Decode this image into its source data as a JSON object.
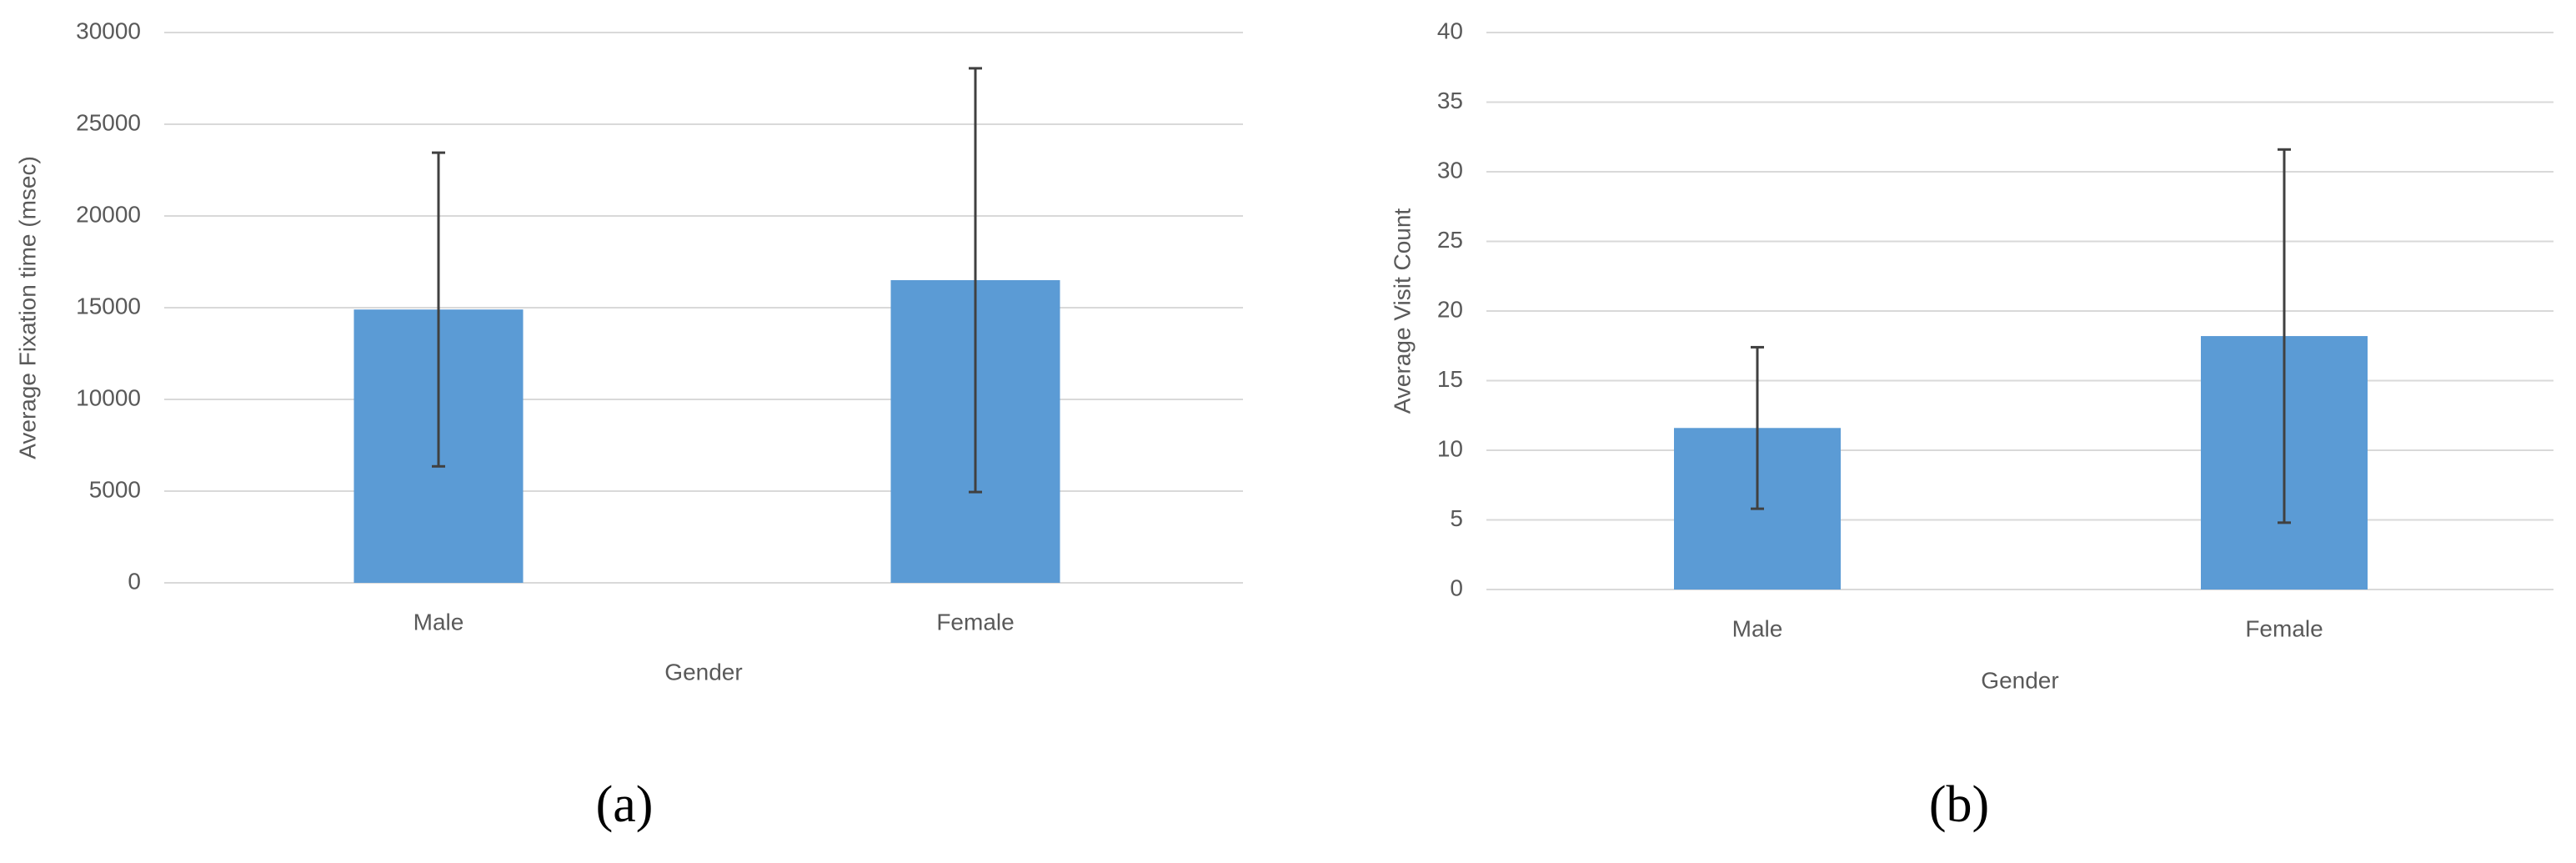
{
  "chart_data": [
    {
      "type": "bar",
      "caption": "(a)",
      "xlabel": "Gender",
      "ylabel": "Average Fixation time (msec)",
      "categories": [
        "Male",
        "Female"
      ],
      "values": [
        14900,
        16500
      ],
      "errors": [
        8550,
        11550
      ],
      "color": "#5b9bd5",
      "ylim": [
        0,
        30000
      ],
      "yticks": [
        0,
        5000,
        10000,
        15000,
        20000,
        25000,
        30000
      ],
      "grid": true
    },
    {
      "type": "bar",
      "caption": "(b)",
      "xlabel": "Gender",
      "ylabel": "Average Visit Count",
      "categories": [
        "Male",
        "Female"
      ],
      "values": [
        11.6,
        18.2
      ],
      "errors": [
        5.8,
        13.4
      ],
      "color": "#5b9bd5",
      "ylim": [
        0,
        40
      ],
      "yticks": [
        0,
        5,
        10,
        15,
        20,
        25,
        30,
        35,
        40
      ],
      "grid": true
    }
  ]
}
